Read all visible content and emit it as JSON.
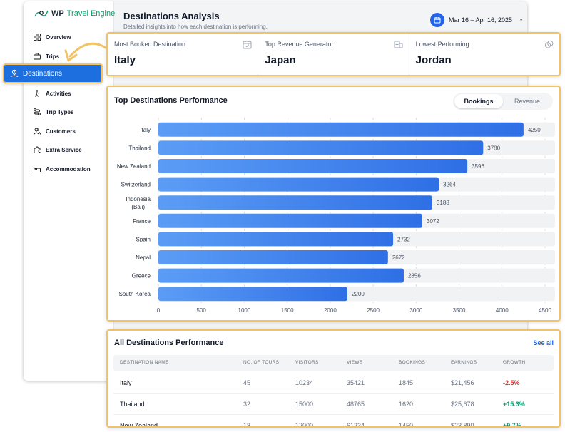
{
  "app": {
    "logo_wp": "WP",
    "logo_brand": "Travel Engine"
  },
  "sidebar": {
    "items": [
      {
        "label": "Overview",
        "icon": "grid-icon"
      },
      {
        "label": "Trips",
        "icon": "suitcase-icon"
      },
      {
        "label": "Destinations",
        "icon": "location-pin-icon",
        "active": true
      },
      {
        "label": "Activities",
        "icon": "hiker-icon"
      },
      {
        "label": "Trip Types",
        "icon": "route-icon"
      },
      {
        "label": "Customers",
        "icon": "users-icon"
      },
      {
        "label": "Extra Service",
        "icon": "puzzle-icon"
      },
      {
        "label": "Accommodation",
        "icon": "bed-icon"
      }
    ]
  },
  "header": {
    "title": "Destinations Analysis",
    "subtitle": "Detailed insights into how each destination is performing.",
    "date_range": "Mar 16 – Apr 16, 2025"
  },
  "kpis": [
    {
      "label": "Most Booked Destination",
      "value": "Italy",
      "icon": "calendar-check-icon"
    },
    {
      "label": "Top Revenue Generator",
      "value": "Japan",
      "icon": "coins-icon"
    },
    {
      "label": "Lowest Performing",
      "value": "Jordan",
      "icon": "coins-outline-icon"
    }
  ],
  "chart": {
    "toggle": [
      "Bookings",
      "Revenue"
    ],
    "active_toggle": "Bookings"
  },
  "chart_data": {
    "type": "bar",
    "orientation": "horizontal",
    "title": "Top Destinations Performance",
    "categories": [
      "Italy",
      "Thailand",
      "New Zealand",
      "Switzerland",
      "Indonesia (Bali)",
      "France",
      "Spain",
      "Nepal",
      "Greece",
      "South Korea"
    ],
    "values": [
      4250,
      3780,
      3596,
      3264,
      3188,
      3072,
      2732,
      2672,
      2856,
      2200
    ],
    "xlim": [
      0,
      4500
    ],
    "xticks": [
      0,
      500,
      1000,
      1500,
      2000,
      2500,
      3000,
      3500,
      4000,
      4500
    ],
    "grid": true,
    "bar_color": "#2f6fe6"
  },
  "table": {
    "title": "All Destinations Performance",
    "see_all": "See all",
    "columns": [
      "Destination Name",
      "No. of Tours",
      "Visitors",
      "Views",
      "Bookings",
      "Earnings",
      "Growth"
    ],
    "rows": [
      {
        "name": "Italy",
        "tours": "45",
        "visitors": "10234",
        "views": "35421",
        "bookings": "1845",
        "earnings": "$21,456",
        "growth": "-2.5%"
      },
      {
        "name": "Thailand",
        "tours": "32",
        "visitors": "15000",
        "views": "48765",
        "bookings": "1620",
        "earnings": "$25,678",
        "growth": "+15.3%"
      },
      {
        "name": "New Zealand",
        "tours": "18",
        "visitors": "12000",
        "views": "61234",
        "bookings": "1450",
        "earnings": "$23,890",
        "growth": "+9.7%"
      }
    ]
  }
}
